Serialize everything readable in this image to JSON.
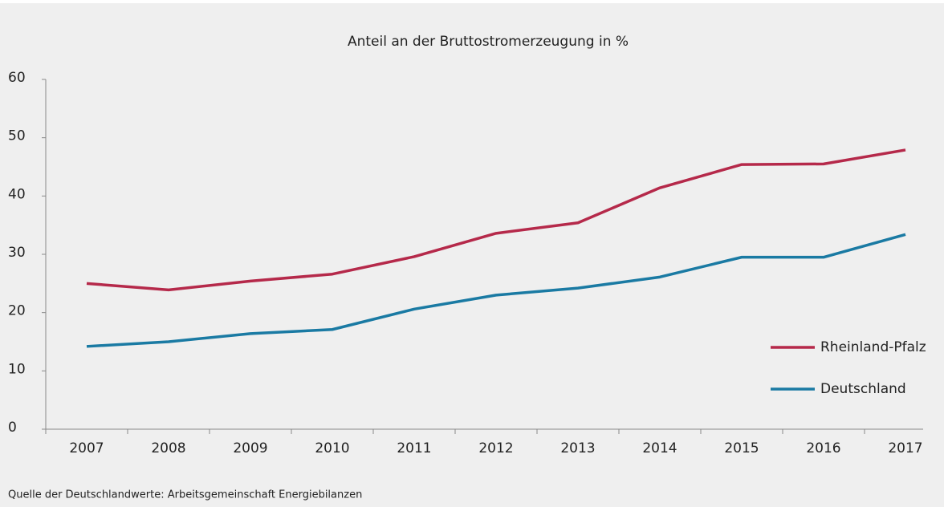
{
  "chart_data": {
    "type": "line",
    "title": "Anteil an der Bruttostromerzeugung in %",
    "categories": [
      "2007",
      "2008",
      "2009",
      "2010",
      "2011",
      "2012",
      "2013",
      "2014",
      "2015",
      "2016",
      "2017"
    ],
    "series": [
      {
        "name": "Rheinland-Pfalz",
        "color": "#b5294a",
        "values": [
          25.0,
          23.9,
          25.4,
          26.6,
          29.6,
          33.6,
          35.4,
          41.4,
          45.4,
          45.5,
          47.9
        ]
      },
      {
        "name": "Deutschland",
        "color": "#1a7aa3",
        "values": [
          14.2,
          15.0,
          16.4,
          17.1,
          20.6,
          23.0,
          24.2,
          26.1,
          29.5,
          29.5,
          33.4
        ]
      }
    ],
    "ylim": [
      0,
      60
    ],
    "yticks": [
      0,
      10,
      20,
      30,
      40,
      50,
      60
    ],
    "legend": "right",
    "source": "Quelle der Deutschlandwerte: Arbeitsgemeinschaft Energiebilanzen"
  }
}
